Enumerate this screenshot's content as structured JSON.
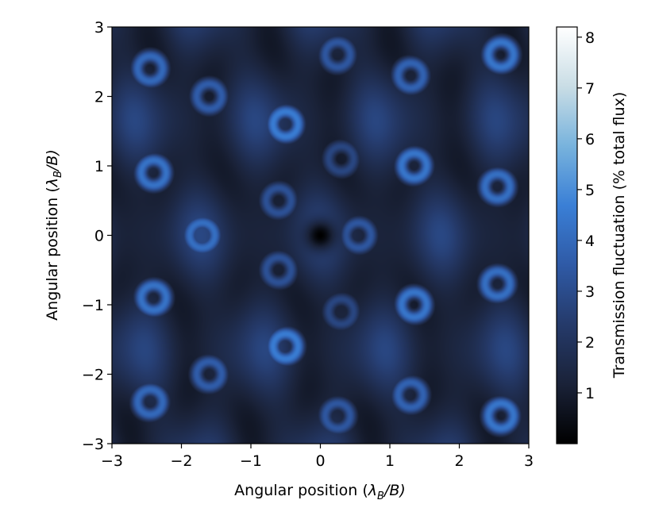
{
  "chart_data": {
    "type": "heatmap",
    "title": "",
    "xlabel_prefix": "Angular position (",
    "xlabel_sym": "λ",
    "xlabel_sub": "B",
    "xlabel_suffix": "/B)",
    "ylabel_prefix": "Angular position (",
    "ylabel_sym": "λ",
    "ylabel_sub": "B",
    "ylabel_suffix": "/B)",
    "xlim": [
      -3,
      3
    ],
    "ylim": [
      -3,
      3
    ],
    "x_ticks": [
      -3,
      -2,
      -1,
      0,
      1,
      2,
      3
    ],
    "x_tick_labels": [
      "−3",
      "−2",
      "−1",
      "0",
      "1",
      "2",
      "3"
    ],
    "y_ticks": [
      -3,
      -2,
      -1,
      0,
      1,
      2,
      3
    ],
    "y_tick_labels": [
      "−3",
      "−2",
      "−1",
      "0",
      "1",
      "2",
      "3"
    ],
    "colorbar": {
      "label": "Transmission fluctuation (% total flux)",
      "range": [
        0,
        8.2
      ],
      "ticks": [
        1,
        2,
        3,
        4,
        5,
        6,
        7,
        8
      ],
      "tick_labels": [
        "1",
        "2",
        "3",
        "4",
        "5",
        "6",
        "7",
        "8"
      ],
      "colormap": [
        "#000000",
        "#1a2238",
        "#253a6a",
        "#2f5aa6",
        "#3a7fd6",
        "#78b3dd",
        "#c9dde5",
        "#ffffff"
      ]
    },
    "field_model": {
      "description_type": "approximate pattern",
      "minimum_at": [
        0,
        0
      ],
      "peaks": [
        {
          "x": -0.5,
          "y": 1.6,
          "value": 4.6
        },
        {
          "x": -0.5,
          "y": -1.6,
          "value": 4.6
        },
        {
          "x": 1.35,
          "y": 1.0,
          "value": 4.4
        },
        {
          "x": 1.35,
          "y": -1.0,
          "value": 4.4
        },
        {
          "x": -1.7,
          "y": 0.0,
          "value": 4.2
        },
        {
          "x": -2.4,
          "y": 0.9,
          "value": 4.3
        },
        {
          "x": -2.4,
          "y": -0.9,
          "value": 4.3
        },
        {
          "x": 2.55,
          "y": 0.7,
          "value": 4.2
        },
        {
          "x": 2.55,
          "y": -0.7,
          "value": 4.2
        },
        {
          "x": -2.45,
          "y": 2.4,
          "value": 4.0
        },
        {
          "x": -2.45,
          "y": -2.4,
          "value": 4.0
        },
        {
          "x": 2.6,
          "y": 2.6,
          "value": 4.4
        },
        {
          "x": 2.6,
          "y": -2.6,
          "value": 4.4
        },
        {
          "x": 1.3,
          "y": 2.3,
          "value": 3.8
        },
        {
          "x": 1.3,
          "y": -2.3,
          "value": 3.8
        },
        {
          "x": -1.6,
          "y": 2.0,
          "value": 3.6
        },
        {
          "x": -1.6,
          "y": -2.0,
          "value": 3.6
        },
        {
          "x": 0.25,
          "y": 2.6,
          "value": 3.4
        },
        {
          "x": 0.25,
          "y": -2.6,
          "value": 3.4
        },
        {
          "x": 0.55,
          "y": 0.0,
          "value": 3.4
        },
        {
          "x": -0.6,
          "y": 0.5,
          "value": 3.2
        },
        {
          "x": -0.6,
          "y": -0.5,
          "value": 3.2
        },
        {
          "x": 0.3,
          "y": 1.1,
          "value": 2.8
        },
        {
          "x": 0.3,
          "y": -1.1,
          "value": 2.8
        }
      ]
    }
  }
}
